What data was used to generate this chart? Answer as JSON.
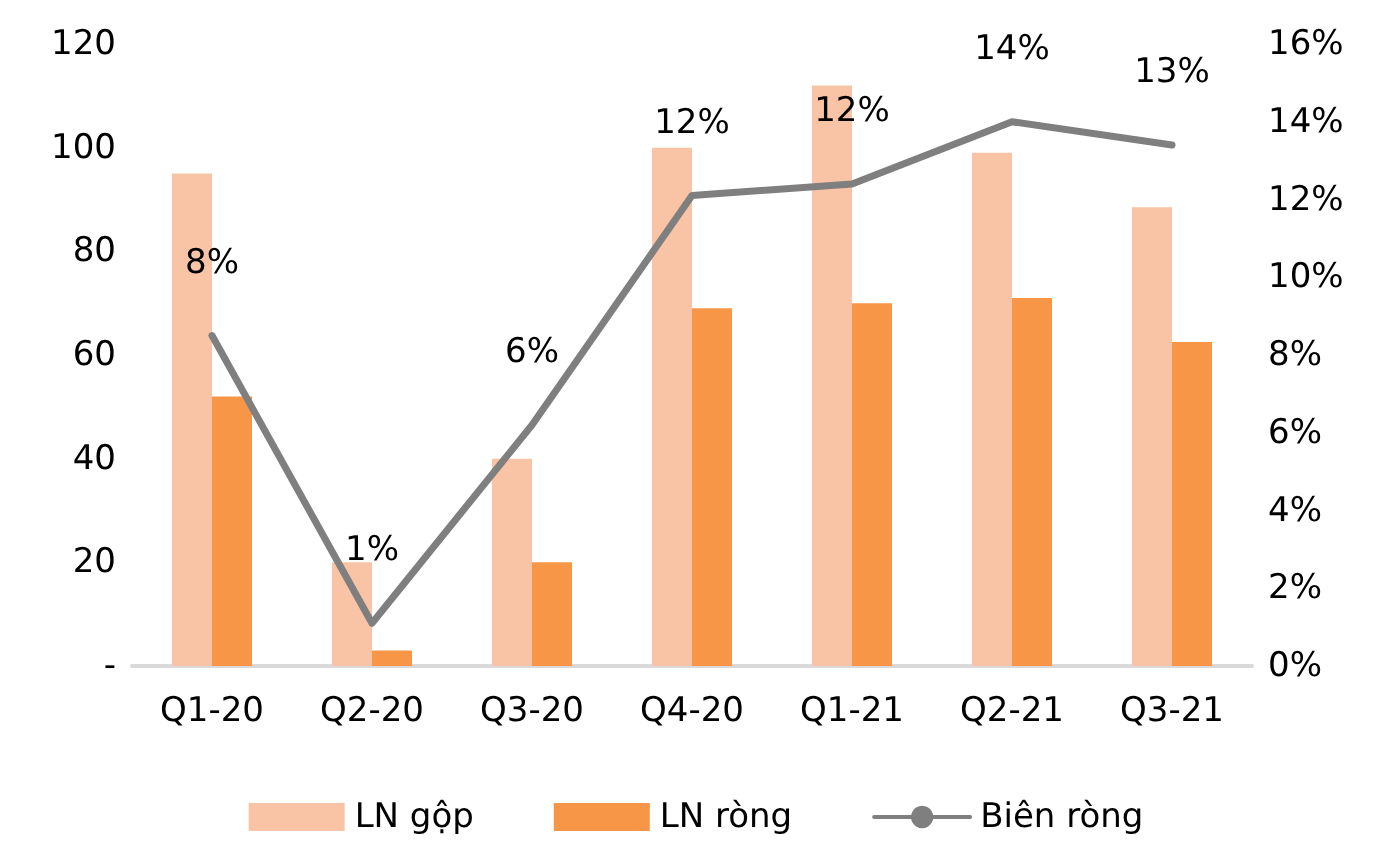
{
  "chart_data": {
    "type": "bar",
    "categories": [
      "Q1-20",
      "Q2-20",
      "Q3-20",
      "Q4-20",
      "Q1-21",
      "Q2-21",
      "Q3-21"
    ],
    "series": [
      {
        "name": "LN gộp",
        "color": "#f9c3a6",
        "values": [
          95,
          20,
          40,
          100,
          112,
          99,
          88.5
        ]
      },
      {
        "name": "LN ròng",
        "color": "#f79646",
        "values": [
          52,
          3,
          20,
          69,
          70,
          71,
          62.5
        ]
      },
      {
        "name": "Biên ròng",
        "type": "line",
        "axis": "y2",
        "color": "#7f7f7f",
        "values": [
          8.5,
          1.1,
          6.2,
          12.1,
          12.4,
          14.0,
          13.4
        ],
        "value_labels": [
          "8%",
          "1%",
          "6%",
          "12%",
          "12%",
          "14%",
          "13%"
        ]
      }
    ],
    "ylim": [
      0,
      120
    ],
    "yticks": [
      {
        "value": 0,
        "label": "-"
      },
      20,
      40,
      60,
      80,
      100,
      120
    ],
    "y2lim": [
      0,
      16
    ],
    "y2ticks": [
      {
        "value": 0,
        "label": "0%"
      },
      {
        "value": 2,
        "label": "2%"
      },
      {
        "value": 4,
        "label": "4%"
      },
      {
        "value": 6,
        "label": "6%"
      },
      {
        "value": 8,
        "label": "8%"
      },
      {
        "value": 10,
        "label": "10%"
      },
      {
        "value": 12,
        "label": "12%"
      },
      {
        "value": 14,
        "label": "14%"
      },
      {
        "value": 16,
        "label": "16%"
      }
    ],
    "grid": false,
    "legend": "bottom",
    "marker": "none",
    "line_style": "solid"
  }
}
